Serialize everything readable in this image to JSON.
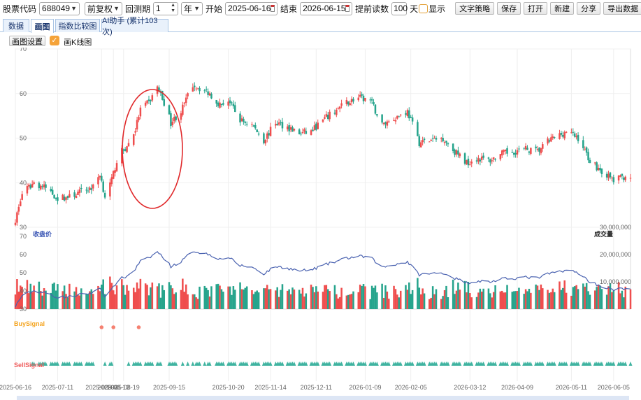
{
  "toolbar": {
    "stock_code_label": "股票代码",
    "stock_code": "688049",
    "adjust": "前复权",
    "period_label": "回测期",
    "period_value": "1",
    "period_unit": "年",
    "start_label": "开始",
    "start_date": "2025-06-16",
    "end_label": "结束",
    "end_date": "2026-06-15",
    "lookahead_label": "提前读数",
    "lookahead_value": "100",
    "lookahead_unit": "天",
    "show_label": "显示",
    "buttons": [
      "文字策略",
      "保存",
      "打开",
      "新建",
      "分享",
      "导出数据"
    ]
  },
  "tabs": [
    {
      "label": "数据",
      "active": false
    },
    {
      "label": "画图",
      "active": true
    },
    {
      "label": "指数比较图",
      "active": false
    },
    {
      "label": "AI助手 (累计103次)",
      "active": false
    }
  ],
  "subbar": {
    "settings_button": "画图设置",
    "kline_checkbox_label": "画K线图",
    "kline_checked": true
  },
  "colors": {
    "up": "#ef4d4d",
    "down": "#26a48c",
    "close_line": "#4a62b0",
    "signal_buy": "#f58070",
    "signal_sell": "#3fb3a0",
    "annotation": "#e0282a"
  },
  "chart_data": [
    {
      "type": "candlestick",
      "title": "",
      "y_ticks": [
        "70",
        "60",
        "50",
        "40",
        "30"
      ],
      "ylim": [
        30,
        70
      ],
      "anchors_close": [
        [
          "2025-06-16",
          31.5
        ],
        [
          "2025-06-20",
          37.5
        ],
        [
          "2025-06-27",
          40.0
        ],
        [
          "2025-07-04",
          38.8
        ],
        [
          "2025-07-11",
          36.5
        ],
        [
          "2025-07-18",
          36.8
        ],
        [
          "2025-07-25",
          38.0
        ],
        [
          "2025-08-01",
          39.0
        ],
        [
          "2025-08-05",
          42.0
        ],
        [
          "2025-08-08",
          37.0
        ],
        [
          "2025-08-12",
          40.5
        ],
        [
          "2025-08-15",
          45.0
        ],
        [
          "2025-08-18",
          47.0
        ],
        [
          "2025-08-21",
          48.0
        ],
        [
          "2025-08-26",
          52.0
        ],
        [
          "2025-08-29",
          56.5
        ],
        [
          "2025-09-03",
          58.0
        ],
        [
          "2025-09-08",
          61.5
        ],
        [
          "2025-09-12",
          58.0
        ],
        [
          "2025-09-16",
          53.5
        ],
        [
          "2025-09-22",
          56.0
        ],
        [
          "2025-09-29",
          62.0
        ],
        [
          "2025-10-09",
          60.0
        ],
        [
          "2025-10-15",
          57.5
        ],
        [
          "2025-10-20",
          58.5
        ],
        [
          "2025-10-27",
          54.0
        ],
        [
          "2025-11-03",
          53.0
        ],
        [
          "2025-11-10",
          49.5
        ],
        [
          "2025-11-17",
          53.5
        ],
        [
          "2025-11-24",
          52.5
        ],
        [
          "2025-12-01",
          51.0
        ],
        [
          "2025-12-08",
          51.5
        ],
        [
          "2025-12-15",
          54.0
        ],
        [
          "2025-12-22",
          56.0
        ],
        [
          "2025-12-29",
          58.0
        ],
        [
          "2026-01-05",
          59.0
        ],
        [
          "2026-01-12",
          58.5
        ],
        [
          "2026-01-19",
          53.0
        ],
        [
          "2026-01-26",
          54.5
        ],
        [
          "2026-02-03",
          56.0
        ],
        [
          "2026-02-10",
          49.0
        ],
        [
          "2026-02-24",
          50.0
        ],
        [
          "2026-03-03",
          47.0
        ],
        [
          "2026-03-10",
          44.5
        ],
        [
          "2026-03-17",
          45.5
        ],
        [
          "2026-03-24",
          45.0
        ],
        [
          "2026-03-31",
          46.5
        ],
        [
          "2026-04-07",
          47.0
        ],
        [
          "2026-04-14",
          47.5
        ],
        [
          "2026-04-21",
          47.0
        ],
        [
          "2026-04-28",
          49.5
        ],
        [
          "2026-05-08",
          51.5
        ],
        [
          "2026-05-15",
          50.0
        ],
        [
          "2026-05-22",
          45.0
        ],
        [
          "2026-05-29",
          42.5
        ],
        [
          "2026-06-05",
          40.5
        ],
        [
          "2026-06-12",
          41.5
        ]
      ]
    },
    {
      "type": "bar",
      "title": "成交量",
      "series_labels": {
        "close": "收盘价",
        "volume": "成交量"
      },
      "left_ticks": [
        "70",
        "60",
        "50",
        "40",
        "30"
      ],
      "right_ticks": [
        "30,000,000",
        "20,000,000",
        "10,000,000"
      ],
      "ylim_volume": [
        0,
        30000000
      ]
    },
    {
      "type": "scatter",
      "series": [
        {
          "name": "BuySignal",
          "dates": [
            "2025-08-06",
            "2025-08-13",
            "2025-08-28"
          ]
        },
        {
          "name": "SellSignal",
          "pattern": "dense"
        }
      ]
    }
  ],
  "x_axis": {
    "start": "2025-06-16",
    "end": "2026-06-15",
    "labels": [
      "2025-06-16",
      "2025-07-11",
      "2025-08-06",
      "2025-08-13",
      "2025-08-19",
      "2025-09-15",
      "2025-10-20",
      "2025-11-14",
      "2025-12-11",
      "2026-01-09",
      "2026-02-05",
      "2026-03-12",
      "2026-04-09",
      "2026-05-11",
      "2026-06-05"
    ]
  },
  "annotation": {
    "type": "ellipse",
    "around": "2025-08-06 to 2025-08-26 rally"
  }
}
